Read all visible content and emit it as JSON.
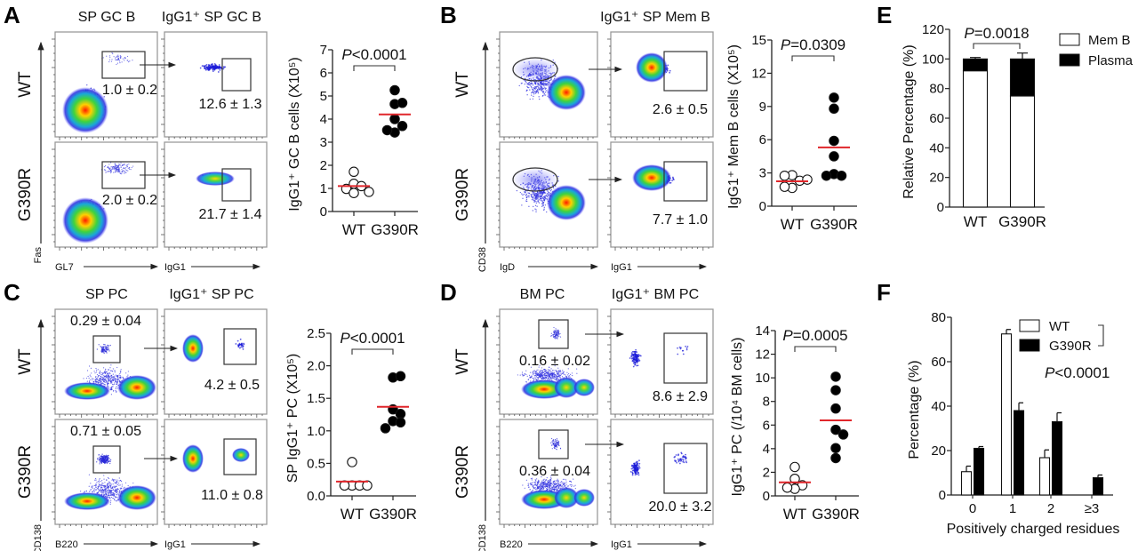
{
  "panels": {
    "A": {
      "label": "A",
      "flow_titles": [
        "SP GC B",
        "IgG1⁺ SP GC B"
      ],
      "rows": [
        "WT",
        "G390R"
      ],
      "x_axis_labels": [
        "GL7",
        "IgG1"
      ],
      "y_axis_label": "Fas",
      "gate_values": {
        "WT": [
          "1.0 ± 0.2",
          "12.6 ± 1.3"
        ],
        "G390R": [
          "2.0 ± 0.2",
          "21.7 ± 1.4"
        ]
      }
    },
    "B": {
      "label": "B",
      "flow_titles": [
        "",
        "IgG1⁺ SP Mem B"
      ],
      "rows": [
        "WT",
        "G390R"
      ],
      "x_axis_labels": [
        "IgD",
        "IgG1"
      ],
      "y_axis_label": "CD38",
      "gate_values": {
        "WT": [
          "",
          "2.6 ± 0.5"
        ],
        "G390R": [
          "",
          "7.7 ± 1.0"
        ]
      }
    },
    "C": {
      "label": "C",
      "flow_titles": [
        "SP PC",
        "IgG1⁺ SP PC"
      ],
      "rows": [
        "WT",
        "G390R"
      ],
      "x_axis_labels": [
        "B220",
        "IgG1"
      ],
      "y_axis_label": "CD138",
      "gate_values": {
        "WT": [
          "0.29 ± 0.04",
          "4.2 ± 0.5"
        ],
        "G390R": [
          "0.71 ± 0.05",
          "11.0 ± 0.8"
        ]
      }
    },
    "D": {
      "label": "D",
      "flow_titles": [
        "BM PC",
        "IgG1⁺ BM PC"
      ],
      "rows": [
        "WT",
        "G390R"
      ],
      "x_axis_labels": [
        "B220",
        "IgG1"
      ],
      "y_axis_label": "CD138",
      "gate_values": {
        "WT": [
          "0.16 ± 0.02",
          "8.6 ± 2.9"
        ],
        "G390R": [
          "0.36 ± 0.04",
          "20.0 ± 3.2"
        ]
      }
    },
    "E": {
      "label": "E"
    },
    "F": {
      "label": "F"
    }
  },
  "colors": {
    "mean_line": "#e0262b",
    "filled": "#000000",
    "open": "#ffffff",
    "axis": "#222222",
    "gate": "#333333",
    "frame": "#9a9a9a"
  },
  "chart_data": [
    {
      "id": "A",
      "type": "scatter",
      "title": "",
      "ylabel": "IgG1⁺ GC B cells (X10⁵)",
      "categories": [
        "WT",
        "G390R"
      ],
      "ylim": [
        0,
        7
      ],
      "yticks": [
        0,
        1,
        2,
        3,
        4,
        5,
        6,
        7
      ],
      "ytick_labels": [
        "0",
        "1",
        "2",
        "3",
        "4",
        "5",
        "6",
        "7"
      ],
      "annotation": "P<0.0001",
      "series": [
        {
          "name": "WT",
          "style": "open",
          "values": [
            1.72,
            1.2,
            1.1,
            0.98,
            0.8,
            0.85
          ],
          "mean": 1.1
        },
        {
          "name": "G390R",
          "style": "filled",
          "values": [
            5.25,
            4.65,
            4.7,
            4.0,
            3.7,
            3.42,
            3.52
          ],
          "mean": 4.2
        }
      ]
    },
    {
      "id": "B",
      "type": "scatter",
      "ylabel": "IgG1⁺ Mem B cells (X10⁵)",
      "categories": [
        "WT",
        "G390R"
      ],
      "ylim": [
        0,
        15
      ],
      "yticks": [
        0,
        3,
        6,
        9,
        12,
        15
      ],
      "ytick_labels": [
        "0",
        "3",
        "6",
        "9",
        "12",
        "15"
      ],
      "annotation": "P=0.0309",
      "series": [
        {
          "name": "WT",
          "style": "open",
          "values": [
            2.8,
            2.3,
            2.75,
            2.4,
            1.65,
            1.75
          ],
          "mean": 2.25
        },
        {
          "name": "G390R",
          "style": "filled",
          "values": [
            9.8,
            8.8,
            5.9,
            4.5,
            2.9,
            2.75,
            2.75
          ],
          "mean": 5.3
        }
      ]
    },
    {
      "id": "C",
      "type": "scatter",
      "ylabel": "SP IgG1⁺ PC (X10⁵)",
      "categories": [
        "WT",
        "G390R"
      ],
      "ylim": [
        0,
        2.5
      ],
      "yticks": [
        0,
        0.5,
        1.0,
        1.5,
        2.0,
        2.5
      ],
      "ytick_labels": [
        "0.0",
        "0.5",
        "1.0",
        "1.5",
        "2.0",
        "2.5"
      ],
      "annotation": "P<0.0001",
      "series": [
        {
          "name": "WT",
          "style": "open",
          "values": [
            0.52,
            0.16,
            0.16,
            0.16,
            0.16
          ],
          "mean": 0.22
        },
        {
          "name": "G390R",
          "style": "filled",
          "values": [
            1.82,
            1.84,
            1.33,
            1.26,
            1.15,
            1.13,
            1.04
          ],
          "mean": 1.37
        }
      ]
    },
    {
      "id": "D",
      "type": "scatter",
      "ylabel": "IgG1⁺ PC (/10⁴ BM cells)",
      "categories": [
        "WT",
        "G390R"
      ],
      "ylim": [
        0,
        14
      ],
      "yticks": [
        0,
        2,
        4,
        6,
        8,
        10,
        12,
        14
      ],
      "ytick_labels": [
        "0",
        "2",
        "4",
        "6",
        "8",
        "10",
        "12",
        "14"
      ],
      "annotation": "P=0.0005",
      "series": [
        {
          "name": "WT",
          "style": "open",
          "values": [
            2.45,
            1.45,
            0.9,
            0.6,
            0.7
          ],
          "mean": 1.15
        },
        {
          "name": "G390R",
          "style": "filled",
          "values": [
            10.1,
            8.95,
            7.4,
            5.6,
            5.2,
            4.05,
            3.2
          ],
          "mean": 6.4
        }
      ]
    },
    {
      "id": "E",
      "type": "bar",
      "stacked": true,
      "ylabel": "Relative Percentage (%)",
      "categories": [
        "WT",
        "G390R"
      ],
      "ylim": [
        0,
        120
      ],
      "yticks": [
        0,
        20,
        40,
        60,
        80,
        100,
        120
      ],
      "ytick_labels": [
        "0",
        "20",
        "40",
        "60",
        "80",
        "100",
        "120"
      ],
      "annotation": "P=0.0018",
      "legend": [
        "Mem B",
        "Plasma"
      ],
      "legend_position": "right",
      "series": [
        {
          "name": "Mem B",
          "style": "open",
          "values": [
            92,
            75
          ]
        },
        {
          "name": "Plasma",
          "style": "filled",
          "values": [
            8,
            25
          ],
          "error": [
            1,
            4
          ]
        }
      ]
    },
    {
      "id": "F",
      "type": "bar",
      "ylabel": "Percentage (%)",
      "xlabel": "Positively charged residues",
      "categories": [
        "0",
        "1",
        "2",
        "≥3"
      ],
      "ylim": [
        0,
        80
      ],
      "yticks": [
        0,
        20,
        40,
        60,
        80
      ],
      "ytick_labels": [
        "0",
        "20",
        "40",
        "60",
        "80"
      ],
      "annotation": "P<0.0001",
      "legend": [
        "WT",
        "G390R"
      ],
      "legend_position": "top-right",
      "series": [
        {
          "name": "WT",
          "style": "open",
          "values": [
            10.5,
            72.5,
            16.8,
            0
          ],
          "error": [
            2.5,
            2,
            3.5,
            0
          ]
        },
        {
          "name": "G390R",
          "style": "filled",
          "values": [
            21,
            38,
            33,
            7.8
          ],
          "error": [
            0.8,
            3.5,
            4,
            1.2
          ]
        }
      ]
    }
  ]
}
